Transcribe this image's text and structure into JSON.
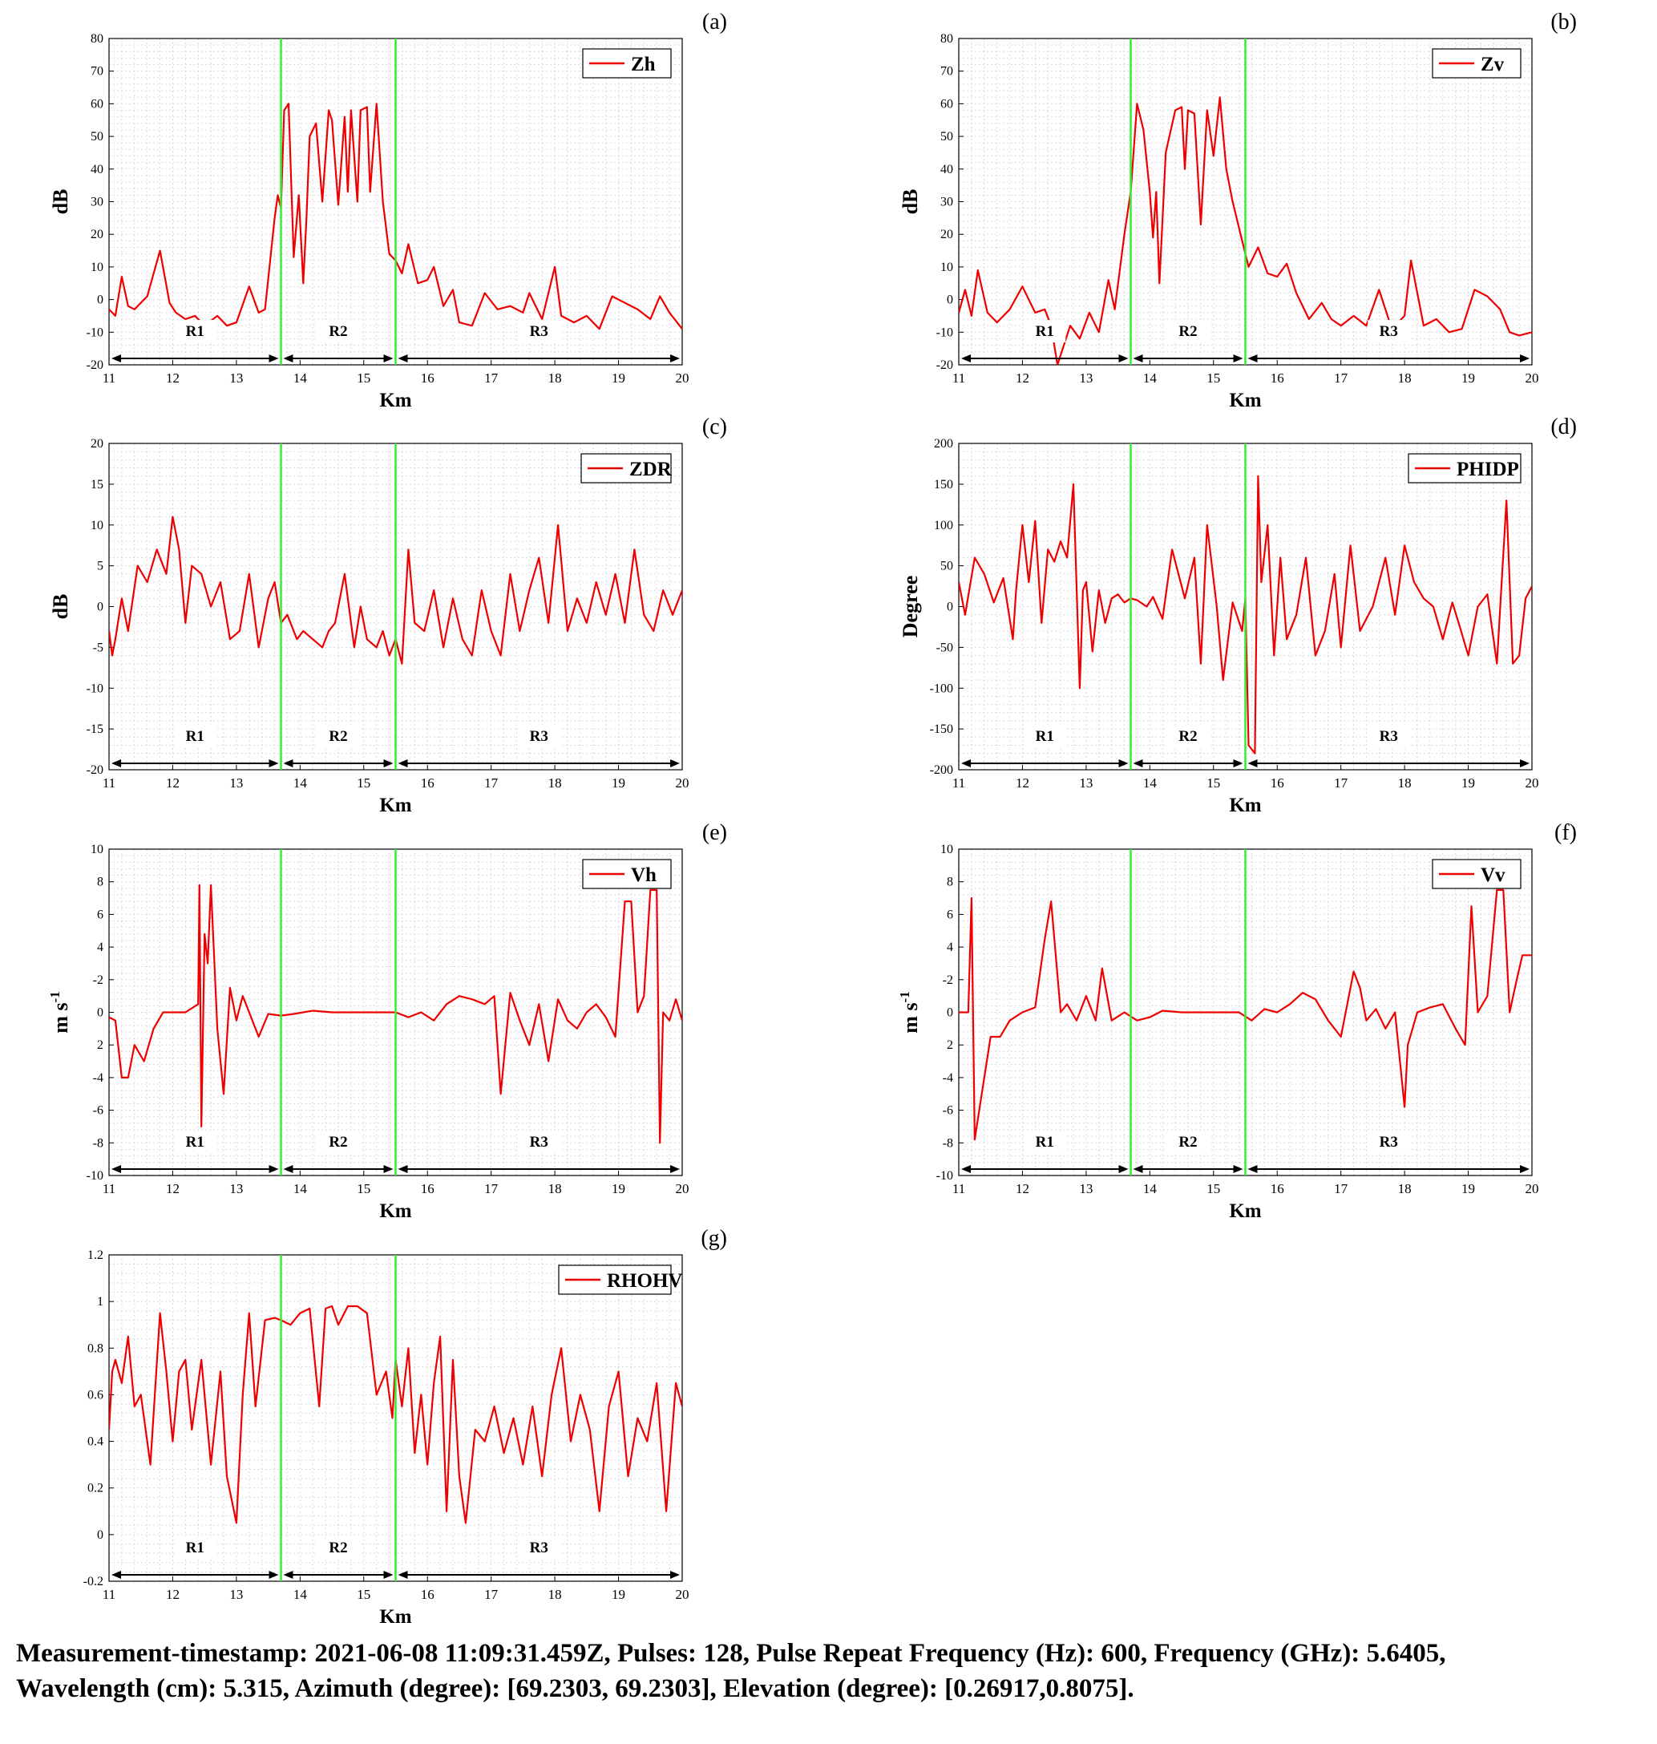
{
  "figure": {
    "x_label": "Km",
    "xlim": [
      11,
      20
    ],
    "x_ticks": [
      11,
      12,
      13,
      14,
      15,
      16,
      17,
      18,
      19,
      20
    ],
    "boundaries_km": [
      13.7,
      15.5
    ],
    "regions": [
      {
        "label": "R1",
        "from": 11,
        "to": 13.7
      },
      {
        "label": "R2",
        "from": 13.7,
        "to": 15.5
      },
      {
        "label": "R3",
        "from": 15.5,
        "to": 20
      }
    ],
    "colors": {
      "series": "#ee0000",
      "boundary": "#33ee33",
      "grid": "#d9d9d9",
      "axis": "#000000"
    }
  },
  "caption": {
    "line1": "Measurement-timestamp: 2021-06-08 11:09:31.459Z, Pulses: 128, Pulse Repeat Frequency (Hz): 600, Frequency (GHz): 5.6405,",
    "line2": "Wavelength (cm): 5.315, Azimuth (degree): [69.2303, 69.2303], Elevation (degree): [0.26917,0.8075]."
  },
  "chart_data": [
    {
      "type": "line",
      "panel_label": "(a)",
      "series_name": "Zh",
      "ylabel": "dB",
      "ylabel_exponent": "",
      "ylim": [
        -20,
        80
      ],
      "y_ticks": [
        -20,
        -10,
        0,
        10,
        20,
        30,
        40,
        50,
        60,
        70,
        80
      ],
      "x": [
        11.0,
        11.1,
        11.2,
        11.3,
        11.4,
        11.6,
        11.8,
        11.95,
        12.05,
        12.2,
        12.35,
        12.5,
        12.7,
        12.85,
        13.0,
        13.2,
        13.35,
        13.45,
        13.6,
        13.65,
        13.7,
        13.75,
        13.82,
        13.9,
        13.98,
        14.05,
        14.1,
        14.15,
        14.25,
        14.35,
        14.45,
        14.5,
        14.6,
        14.7,
        14.75,
        14.8,
        14.9,
        14.95,
        15.05,
        15.1,
        15.2,
        15.3,
        15.4,
        15.5,
        15.6,
        15.7,
        15.85,
        16.0,
        16.1,
        16.25,
        16.4,
        16.5,
        16.7,
        16.9,
        17.1,
        17.3,
        17.5,
        17.6,
        17.8,
        18.0,
        18.1,
        18.3,
        18.5,
        18.7,
        18.9,
        19.1,
        19.3,
        19.5,
        19.65,
        19.8,
        20.0
      ],
      "values": [
        -3,
        -5,
        7,
        -2,
        -3,
        1,
        15,
        -1,
        -4,
        -6,
        -5,
        -8,
        -5,
        -8,
        -7,
        4,
        -4,
        -3,
        25,
        32,
        28,
        58,
        60,
        13,
        32,
        5,
        25,
        50,
        54,
        30,
        58,
        55,
        29,
        56,
        33,
        58,
        30,
        58,
        59,
        33,
        60,
        30,
        14,
        12,
        8,
        17,
        5,
        6,
        10,
        -2,
        3,
        -7,
        -8,
        2,
        -3,
        -2,
        -4,
        2,
        -6,
        10,
        -5,
        -7,
        -5,
        -9,
        1,
        -1,
        -3,
        -6,
        1,
        -4,
        -9
      ]
    },
    {
      "type": "line",
      "panel_label": "(b)",
      "series_name": "Zv",
      "ylabel": "dB",
      "ylabel_exponent": "",
      "ylim": [
        -20,
        80
      ],
      "y_ticks": [
        -20,
        -10,
        0,
        10,
        20,
        30,
        40,
        50,
        60,
        70,
        80
      ],
      "x": [
        11.0,
        11.1,
        11.2,
        11.3,
        11.45,
        11.6,
        11.8,
        12.0,
        12.2,
        12.35,
        12.45,
        12.55,
        12.75,
        12.9,
        13.05,
        13.2,
        13.35,
        13.45,
        13.6,
        13.7,
        13.8,
        13.9,
        14.0,
        14.05,
        14.1,
        14.15,
        14.25,
        14.4,
        14.5,
        14.55,
        14.6,
        14.7,
        14.8,
        14.9,
        15.0,
        15.1,
        15.2,
        15.3,
        15.45,
        15.55,
        15.7,
        15.85,
        16.0,
        16.15,
        16.3,
        16.5,
        16.7,
        16.85,
        17.0,
        17.2,
        17.4,
        17.6,
        17.8,
        18.0,
        18.1,
        18.3,
        18.5,
        18.7,
        18.9,
        19.1,
        19.3,
        19.5,
        19.65,
        19.8,
        20.0
      ],
      "values": [
        -4,
        3,
        -5,
        9,
        -4,
        -7,
        -3,
        4,
        -4,
        -3,
        -8,
        -20,
        -8,
        -12,
        -4,
        -10,
        6,
        -3,
        20,
        33,
        60,
        52,
        33,
        19,
        33,
        5,
        45,
        58,
        59,
        40,
        58,
        57,
        23,
        58,
        44,
        62,
        40,
        30,
        18,
        10,
        16,
        8,
        7,
        11,
        2,
        -6,
        -1,
        -6,
        -8,
        -5,
        -8,
        3,
        -9,
        -5,
        12,
        -8,
        -6,
        -10,
        -9,
        3,
        1,
        -3,
        -10,
        -11,
        -10
      ]
    },
    {
      "type": "line",
      "panel_label": "(c)",
      "series_name": "ZDR",
      "ylabel": "dB",
      "ylabel_exponent": "",
      "ylim": [
        -20,
        20
      ],
      "y_ticks": [
        -20,
        -15,
        -10,
        -5,
        0,
        5,
        10,
        15,
        20
      ],
      "x": [
        11.0,
        11.05,
        11.1,
        11.2,
        11.3,
        11.45,
        11.6,
        11.75,
        11.9,
        12.0,
        12.1,
        12.2,
        12.3,
        12.45,
        12.6,
        12.75,
        12.9,
        13.05,
        13.2,
        13.35,
        13.5,
        13.6,
        13.7,
        13.8,
        13.95,
        14.05,
        14.2,
        14.35,
        14.45,
        14.55,
        14.7,
        14.85,
        14.95,
        15.05,
        15.2,
        15.3,
        15.4,
        15.5,
        15.6,
        15.7,
        15.8,
        15.95,
        16.1,
        16.25,
        16.4,
        16.55,
        16.7,
        16.85,
        17.0,
        17.15,
        17.3,
        17.45,
        17.6,
        17.75,
        17.9,
        18.05,
        18.2,
        18.35,
        18.5,
        18.65,
        18.8,
        18.95,
        19.1,
        19.25,
        19.4,
        19.55,
        19.7,
        19.85,
        20.0
      ],
      "values": [
        -3,
        -6,
        -4,
        1,
        -3,
        5,
        3,
        7,
        4,
        11,
        7,
        -2,
        5,
        4,
        0,
        3,
        -4,
        -3,
        4,
        -5,
        1,
        3,
        -2,
        -1,
        -4,
        -3,
        -4,
        -5,
        -3,
        -2,
        4,
        -5,
        0,
        -4,
        -5,
        -3,
        -6,
        -4,
        -7,
        7,
        -2,
        -3,
        2,
        -5,
        1,
        -4,
        -6,
        2,
        -3,
        -6,
        4,
        -3,
        2,
        6,
        -2,
        10,
        -3,
        1,
        -2,
        3,
        -1,
        4,
        -2,
        7,
        -1,
        -3,
        2,
        -1,
        2
      ]
    },
    {
      "type": "line",
      "panel_label": "(d)",
      "series_name": "PHIDP",
      "ylabel": "Degree",
      "ylabel_exponent": "",
      "ylim": [
        -200,
        200
      ],
      "y_ticks": [
        -200,
        -150,
        -100,
        -50,
        0,
        50,
        100,
        150,
        200
      ],
      "x": [
        11.0,
        11.1,
        11.25,
        11.4,
        11.55,
        11.7,
        11.85,
        11.9,
        12.0,
        12.1,
        12.2,
        12.3,
        12.4,
        12.5,
        12.6,
        12.7,
        12.8,
        12.9,
        12.95,
        13.0,
        13.1,
        13.2,
        13.3,
        13.4,
        13.5,
        13.6,
        13.7,
        13.8,
        13.95,
        14.05,
        14.2,
        14.35,
        14.55,
        14.7,
        14.8,
        14.9,
        15.05,
        15.15,
        15.3,
        15.45,
        15.5,
        15.55,
        15.65,
        15.7,
        15.75,
        15.85,
        15.95,
        16.05,
        16.15,
        16.3,
        16.45,
        16.6,
        16.75,
        16.9,
        17.0,
        17.15,
        17.3,
        17.5,
        17.7,
        17.85,
        18.0,
        18.15,
        18.3,
        18.45,
        18.6,
        18.75,
        18.85,
        19.0,
        19.15,
        19.3,
        19.45,
        19.6,
        19.7,
        19.8,
        19.9,
        20.0
      ],
      "values": [
        30,
        -10,
        60,
        40,
        5,
        35,
        -40,
        20,
        100,
        30,
        105,
        -20,
        70,
        55,
        80,
        60,
        150,
        -100,
        20,
        30,
        -55,
        20,
        -20,
        10,
        15,
        5,
        10,
        8,
        0,
        12,
        -15,
        70,
        10,
        60,
        -70,
        100,
        0,
        -90,
        5,
        -30,
        10,
        -170,
        -180,
        160,
        30,
        100,
        -60,
        60,
        -40,
        -10,
        60,
        -60,
        -30,
        40,
        -50,
        75,
        -30,
        0,
        60,
        -10,
        75,
        30,
        10,
        0,
        -40,
        5,
        -20,
        -60,
        0,
        15,
        -70,
        130,
        -70,
        -60,
        10,
        25
      ]
    },
    {
      "type": "line",
      "panel_label": "(e)",
      "series_name": "Vh",
      "ylabel": "m s",
      "ylabel_exponent": "-1",
      "ylim": [
        -10,
        10
      ],
      "y_ticks": [
        -10,
        -8,
        -6,
        -4,
        2,
        0,
        -2,
        4,
        6,
        8,
        10
      ],
      "x": [
        11.0,
        11.1,
        11.2,
        11.3,
        11.4,
        11.55,
        11.7,
        11.85,
        12.0,
        12.2,
        12.4,
        12.42,
        12.45,
        12.5,
        12.55,
        12.6,
        12.7,
        12.8,
        12.9,
        13.0,
        13.1,
        13.2,
        13.35,
        13.5,
        13.7,
        13.9,
        14.2,
        14.5,
        14.8,
        15.0,
        15.2,
        15.5,
        15.7,
        15.9,
        16.1,
        16.3,
        16.5,
        16.7,
        16.9,
        17.05,
        17.15,
        17.3,
        17.45,
        17.6,
        17.75,
        17.9,
        18.05,
        18.2,
        18.35,
        18.5,
        18.65,
        18.8,
        18.95,
        19.1,
        19.2,
        19.3,
        19.4,
        19.5,
        19.6,
        19.65,
        19.7,
        19.8,
        19.9,
        20.0
      ],
      "values": [
        -0.3,
        -0.5,
        -4,
        -4,
        -2,
        -3,
        -1,
        0,
        0,
        0,
        0.5,
        7.8,
        -7,
        4.8,
        3,
        7.8,
        -1,
        -5,
        1.5,
        -0.5,
        1,
        0,
        -1.5,
        -0.1,
        -0.2,
        -0.1,
        0.1,
        0,
        0,
        0,
        0,
        0,
        -0.3,
        0,
        -0.5,
        0.5,
        1,
        0.8,
        0.5,
        1,
        -5,
        1.2,
        -0.5,
        -2,
        0.5,
        -3,
        0.8,
        -0.5,
        -1,
        0,
        0.5,
        -0.3,
        -1.5,
        6.8,
        6.8,
        0,
        1,
        7.5,
        7.5,
        -8,
        0,
        -0.5,
        0.8,
        -0.5
      ]
    },
    {
      "type": "line",
      "panel_label": "(f)",
      "series_name": "Vv",
      "ylabel": "m s",
      "ylabel_exponent": "-1",
      "ylim": [
        -10,
        10
      ],
      "y_ticks": [
        -10,
        -8,
        -6,
        -4,
        2,
        0,
        -2,
        4,
        6,
        8,
        10
      ],
      "x": [
        11.0,
        11.15,
        11.2,
        11.25,
        11.4,
        11.5,
        11.65,
        11.8,
        12.0,
        12.2,
        12.35,
        12.45,
        12.6,
        12.7,
        12.85,
        13.0,
        13.15,
        13.25,
        13.4,
        13.6,
        13.8,
        14.0,
        14.2,
        14.5,
        14.8,
        15.1,
        15.4,
        15.6,
        15.8,
        16.0,
        16.2,
        16.4,
        16.6,
        16.8,
        17.0,
        17.2,
        17.3,
        17.4,
        17.55,
        17.7,
        17.85,
        18.0,
        18.05,
        18.2,
        18.4,
        18.6,
        18.8,
        18.95,
        19.05,
        19.15,
        19.3,
        19.45,
        19.55,
        19.65,
        19.75,
        19.85,
        20.0
      ],
      "values": [
        0,
        0,
        7,
        -7.8,
        -4,
        -1.5,
        -1.5,
        -0.5,
        0,
        0.3,
        4.5,
        6.8,
        0,
        0.5,
        -0.5,
        1,
        -0.5,
        2.7,
        -0.5,
        0,
        -0.5,
        -0.3,
        0.1,
        0,
        0,
        0,
        0,
        -0.5,
        0.2,
        0,
        0.5,
        1.2,
        0.8,
        -0.5,
        -1.5,
        2.5,
        1.5,
        -0.5,
        0.2,
        -1,
        0,
        -5.8,
        -2,
        0,
        0.3,
        0.5,
        -1,
        -2,
        6.5,
        0,
        1,
        7.5,
        7.5,
        0,
        1.8,
        3.5,
        3.5
      ]
    },
    {
      "type": "line",
      "panel_label": "(g)",
      "series_name": "RHOHV",
      "ylabel": "",
      "ylabel_exponent": "",
      "ylim": [
        -0.2,
        1.2
      ],
      "y_ticks": [
        -0.2,
        0,
        0.2,
        0.4,
        0.6,
        0.8,
        1,
        1.2
      ],
      "x": [
        11.0,
        11.05,
        11.1,
        11.2,
        11.3,
        11.4,
        11.5,
        11.65,
        11.8,
        11.9,
        12.0,
        12.1,
        12.2,
        12.3,
        12.45,
        12.6,
        12.75,
        12.85,
        13.0,
        13.1,
        13.2,
        13.3,
        13.45,
        13.6,
        13.7,
        13.85,
        14.0,
        14.15,
        14.3,
        14.4,
        14.5,
        14.6,
        14.75,
        14.9,
        15.05,
        15.2,
        15.35,
        15.45,
        15.5,
        15.6,
        15.7,
        15.8,
        15.9,
        16.0,
        16.1,
        16.2,
        16.3,
        16.4,
        16.5,
        16.6,
        16.75,
        16.9,
        17.05,
        17.2,
        17.35,
        17.5,
        17.65,
        17.8,
        17.95,
        18.1,
        18.25,
        18.4,
        18.55,
        18.7,
        18.85,
        19.0,
        19.15,
        19.3,
        19.45,
        19.6,
        19.75,
        19.9,
        20.0
      ],
      "values": [
        0.45,
        0.7,
        0.75,
        0.65,
        0.85,
        0.55,
        0.6,
        0.3,
        0.95,
        0.7,
        0.4,
        0.7,
        0.75,
        0.45,
        0.75,
        0.3,
        0.7,
        0.25,
        0.05,
        0.6,
        0.95,
        0.55,
        0.92,
        0.93,
        0.92,
        0.9,
        0.95,
        0.97,
        0.55,
        0.97,
        0.98,
        0.9,
        0.98,
        0.98,
        0.95,
        0.6,
        0.7,
        0.5,
        0.75,
        0.55,
        0.8,
        0.35,
        0.6,
        0.3,
        0.65,
        0.85,
        0.1,
        0.75,
        0.25,
        0.05,
        0.45,
        0.4,
        0.55,
        0.35,
        0.5,
        0.3,
        0.55,
        0.25,
        0.6,
        0.8,
        0.4,
        0.6,
        0.45,
        0.1,
        0.55,
        0.7,
        0.25,
        0.5,
        0.4,
        0.65,
        0.1,
        0.65,
        0.55
      ]
    }
  ]
}
